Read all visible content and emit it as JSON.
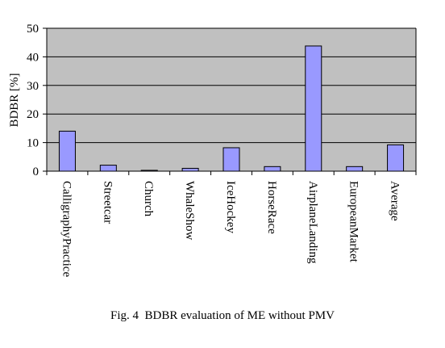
{
  "caption": "Fig. 4  BDBR evaluation of ME without PMV",
  "colors": {
    "plot_background": "#c0c0c0",
    "bar_fill": "#9999ff",
    "bar_stroke": "#000000",
    "gridline": "#000000"
  },
  "chart_data": {
    "type": "bar",
    "categories": [
      "CalligraphyPractice",
      "Streetcar",
      "Church",
      "WhaleShow",
      "IceHockey",
      "HorseRace",
      "AirplaneLanding",
      "EuropeanMarket",
      "Average"
    ],
    "values": [
      14.0,
      2.1,
      0.3,
      1.0,
      8.2,
      1.6,
      43.8,
      1.6,
      9.2
    ],
    "title": "",
    "xlabel": "",
    "ylabel": "BDBR [%]",
    "ylim": [
      0,
      50
    ],
    "yticks": [
      0,
      10,
      20,
      30,
      40,
      50
    ],
    "grid": true,
    "legend": false
  }
}
